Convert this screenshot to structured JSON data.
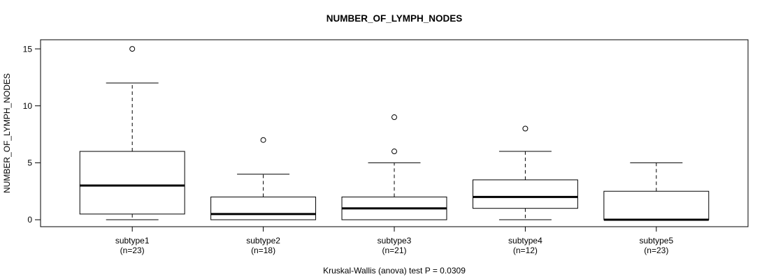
{
  "figure": {
    "title": "NUMBER_OF_LYMPH_NODES",
    "caption": "Kruskal-Wallis (anova) test P = 0.0309"
  },
  "chart_data": {
    "type": "boxplot",
    "title": "NUMBER_OF_LYMPH_NODES",
    "ylabel": "NUMBER_OF_LYMPH_NODES",
    "xlabel": "",
    "caption": "Kruskal-Wallis (anova) test P = 0.0309",
    "yticks": [
      0,
      5,
      10,
      15
    ],
    "ylim": [
      -0.61,
      15.8
    ],
    "grid": false,
    "legend": "none",
    "categories": [
      "subtype1",
      "subtype2",
      "subtype3",
      "subtype4",
      "subtype5"
    ],
    "category_sublabels": [
      "(n=23)",
      "(n=18)",
      "(n=21)",
      "(n=12)",
      "(n=23)"
    ],
    "groups": [
      {
        "label": "subtype1",
        "sublabel": "(n=23)",
        "n": 23,
        "whisker_low": 0,
        "q1": 0.5,
        "median": 3,
        "q3": 6,
        "whisker_high": 12,
        "outliers": [
          15
        ]
      },
      {
        "label": "subtype2",
        "sublabel": "(n=18)",
        "n": 18,
        "whisker_low": 0,
        "q1": 0,
        "median": 0.5,
        "q3": 2,
        "whisker_high": 4,
        "outliers": [
          7
        ]
      },
      {
        "label": "subtype3",
        "sublabel": "(n=21)",
        "n": 21,
        "whisker_low": 0,
        "q1": 0,
        "median": 1,
        "q3": 2,
        "whisker_high": 5,
        "outliers": [
          6,
          9
        ]
      },
      {
        "label": "subtype4",
        "sublabel": "(n=12)",
        "n": 12,
        "whisker_low": 0,
        "q1": 1,
        "median": 2,
        "q3": 3.5,
        "whisker_high": 6,
        "outliers": [
          8
        ]
      },
      {
        "label": "subtype5",
        "sublabel": "(n=23)",
        "n": 23,
        "whisker_low": 0,
        "q1": 0,
        "median": 0,
        "q3": 2.5,
        "whisker_high": 5,
        "outliers": []
      }
    ],
    "colors": {
      "box_stroke": "#000000",
      "median": "#000000",
      "frame": "#000000",
      "background": "#ffffff",
      "text": "#000000"
    }
  }
}
